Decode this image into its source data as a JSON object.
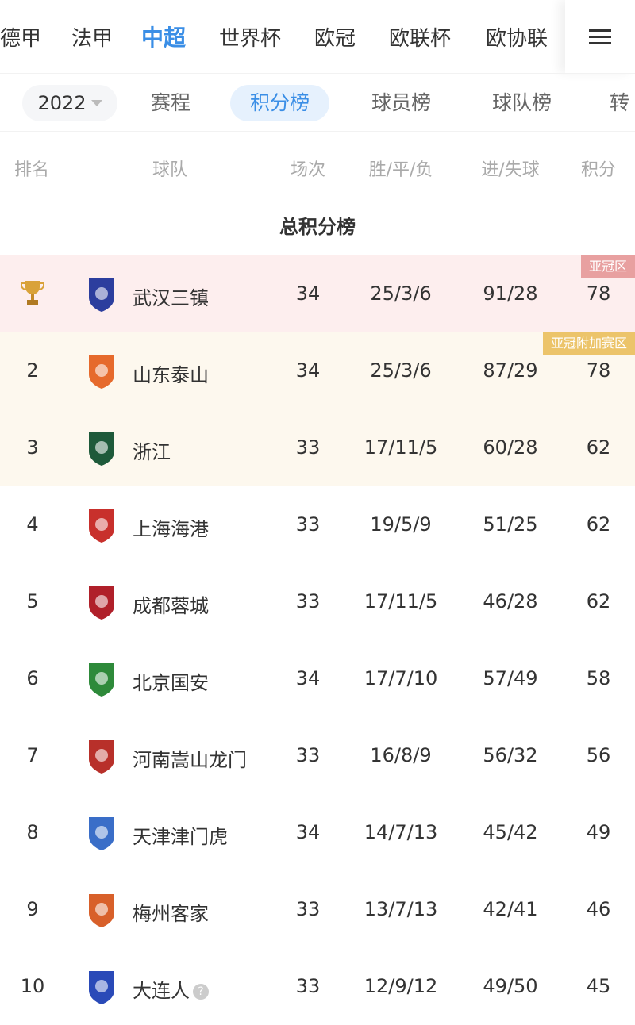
{
  "top_nav": {
    "items": [
      "德甲",
      "法甲",
      "中超",
      "世界杯",
      "欧冠",
      "欧联杯",
      "欧协联"
    ],
    "active": "中超",
    "menu_icon": "hamburger-menu-icon"
  },
  "sub_nav": {
    "year": "2022",
    "items": [
      "赛程",
      "积分榜",
      "球员榜",
      "球队榜",
      "转"
    ],
    "active": "积分榜"
  },
  "table_header": {
    "rank": "排名",
    "team": "球队",
    "played": "场次",
    "wdl": "胜/平/负",
    "goals": "进/失球",
    "points": "积分"
  },
  "section_title": "总积分榜",
  "zones": {
    "acl": {
      "label": "亚冠区",
      "color": "#e8a0a0",
      "bg": "#fdeeee"
    },
    "acl_playoff": {
      "label": "亚冠附加赛区",
      "color": "#ecc46a",
      "bg": "#fdf8ee"
    }
  },
  "accent_color": "#3a8ee6",
  "rows": [
    {
      "rank": "1",
      "rank_icon": "trophy-icon",
      "team": "武汉三镇",
      "played": "34",
      "wdl": "25/3/6",
      "goals": "91/28",
      "points": "78",
      "zone": "acl",
      "badge_color": "#2c3e9e"
    },
    {
      "rank": "2",
      "team": "山东泰山",
      "played": "34",
      "wdl": "25/3/6",
      "goals": "87/29",
      "points": "78",
      "zone": "acl_playoff",
      "badge_color": "#e66a2c"
    },
    {
      "rank": "3",
      "team": "浙江",
      "played": "33",
      "wdl": "17/11/5",
      "goals": "60/28",
      "points": "62",
      "zone": "acl_playoff_cont",
      "badge_color": "#1e5a3a"
    },
    {
      "rank": "4",
      "team": "上海海港",
      "played": "33",
      "wdl": "19/5/9",
      "goals": "51/25",
      "points": "62",
      "badge_color": "#c8302c"
    },
    {
      "rank": "5",
      "team": "成都蓉城",
      "played": "33",
      "wdl": "17/11/5",
      "goals": "46/28",
      "points": "62",
      "badge_color": "#b0202a"
    },
    {
      "rank": "6",
      "team": "北京国安",
      "played": "34",
      "wdl": "17/7/10",
      "goals": "57/49",
      "points": "58",
      "badge_color": "#2e8a3a"
    },
    {
      "rank": "7",
      "team": "河南嵩山龙门",
      "played": "33",
      "wdl": "16/8/9",
      "goals": "56/32",
      "points": "56",
      "badge_color": "#b8302a"
    },
    {
      "rank": "8",
      "team": "天津津门虎",
      "played": "34",
      "wdl": "14/7/13",
      "goals": "45/42",
      "points": "49",
      "badge_color": "#3a6ec8"
    },
    {
      "rank": "9",
      "team": "梅州客家",
      "played": "33",
      "wdl": "13/7/13",
      "goals": "42/41",
      "points": "46",
      "badge_color": "#d8602a"
    },
    {
      "rank": "10",
      "team": "大连人",
      "played": "33",
      "wdl": "12/9/12",
      "goals": "49/50",
      "points": "45",
      "badge_color": "#2a4ab8",
      "help_icon": "question-icon"
    }
  ]
}
